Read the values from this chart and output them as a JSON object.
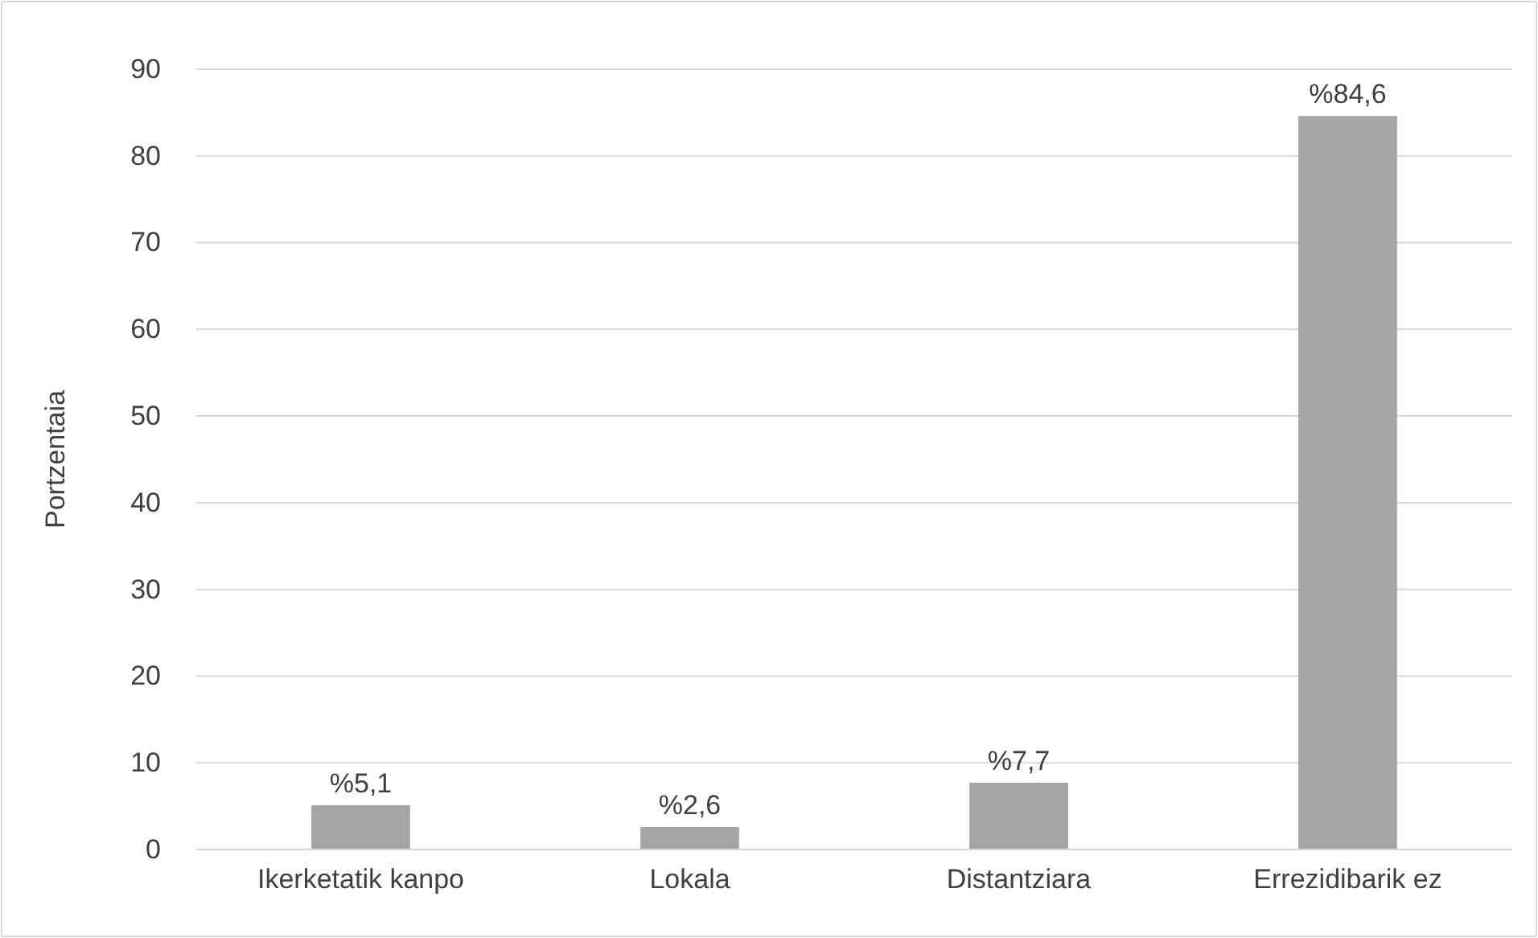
{
  "chart_data": {
    "type": "bar",
    "ylabel": "Portzentaia",
    "categories": [
      "Ikerketatik kanpo",
      "Lokala",
      "Distantziara",
      "Errezidibarik ez"
    ],
    "values": [
      5.1,
      2.6,
      7.7,
      84.6
    ],
    "color": "#a5a5a5",
    "value_labels": [
      "%5,1",
      "%2,6",
      "%7,7",
      "%84,6"
    ],
    "ylim": [
      0,
      90
    ],
    "yticks": [
      0,
      10,
      20,
      30,
      40,
      50,
      60,
      70,
      80,
      90
    ],
    "grid": "y"
  }
}
